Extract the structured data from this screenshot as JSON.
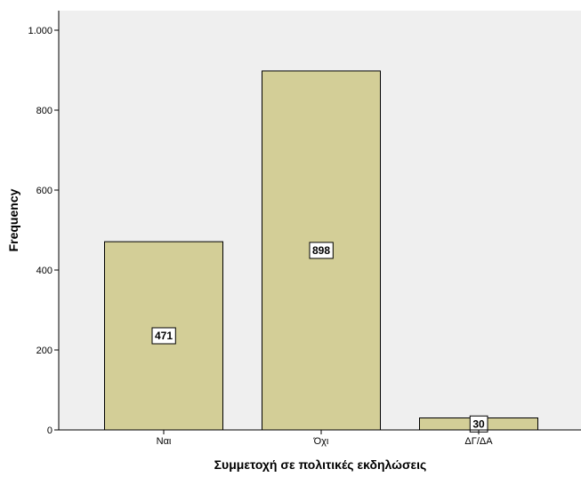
{
  "chart_data": {
    "type": "bar",
    "categories": [
      "Ναι",
      "Όχι",
      "ΔΓ/ΔΑ"
    ],
    "values": [
      471,
      898,
      30
    ],
    "data_labels": [
      "471",
      "898",
      "30"
    ],
    "xlabel": "Συμμετοχή σε πολιτικές εκδηλώσεις",
    "ylabel": "Frequency",
    "ylim": [
      0,
      1000
    ],
    "yticks": [
      0,
      200,
      400,
      600,
      800,
      1000
    ],
    "ytick_labels": [
      "0",
      "200",
      "400",
      "600",
      "800",
      "1.000"
    ],
    "grid": false,
    "legend": "none",
    "colors": {
      "bar_fill": "#d3ce97",
      "bar_stroke": "#000000",
      "plot_background": "#efefef",
      "page_background": "#ffffff"
    }
  }
}
